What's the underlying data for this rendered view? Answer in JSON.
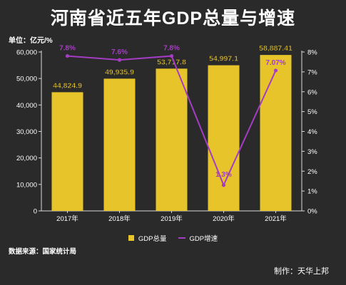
{
  "title": "河南省近五年GDP总量与增速",
  "unit_label": "单位：亿元/%",
  "source": "数据来源：国家统计局",
  "maker": "制作：天华上邦",
  "colors": {
    "bar": "#e7c52a",
    "line": "#a53cc4",
    "background": "#2a2a2a",
    "axis": "#d9d9d9"
  },
  "chart_data": {
    "type": "bar",
    "categories": [
      "2017年",
      "2018年",
      "2019年",
      "2020年",
      "2021年"
    ],
    "series": [
      {
        "name": "GDP总量",
        "type": "bar",
        "axis": "left",
        "values": [
          44824.9,
          49935.9,
          53717.8,
          54997.1,
          58887.41
        ],
        "labels": [
          "44,824.9",
          "49,935.9",
          "53,717.8",
          "54,997.1",
          "58,887.41"
        ]
      },
      {
        "name": "GDP增速",
        "type": "line",
        "axis": "right",
        "values": [
          7.8,
          7.6,
          7.8,
          1.3,
          7.07
        ],
        "labels": [
          "7.8%",
          "7.6%",
          "7.8%",
          "1.3%",
          "7.07%"
        ]
      }
    ],
    "y_left": {
      "min": 0,
      "max": 60000,
      "step": 10000,
      "ticks": [
        "0",
        "10,000",
        "20,000",
        "30,000",
        "40,000",
        "50,000",
        "60,000"
      ]
    },
    "y_right": {
      "min": 0,
      "max": 8,
      "step": 1,
      "ticks": [
        "0%",
        "1%",
        "2%",
        "3%",
        "4%",
        "5%",
        "6%",
        "7%",
        "8%"
      ]
    },
    "grid": false,
    "legend_position": "bottom-center"
  }
}
